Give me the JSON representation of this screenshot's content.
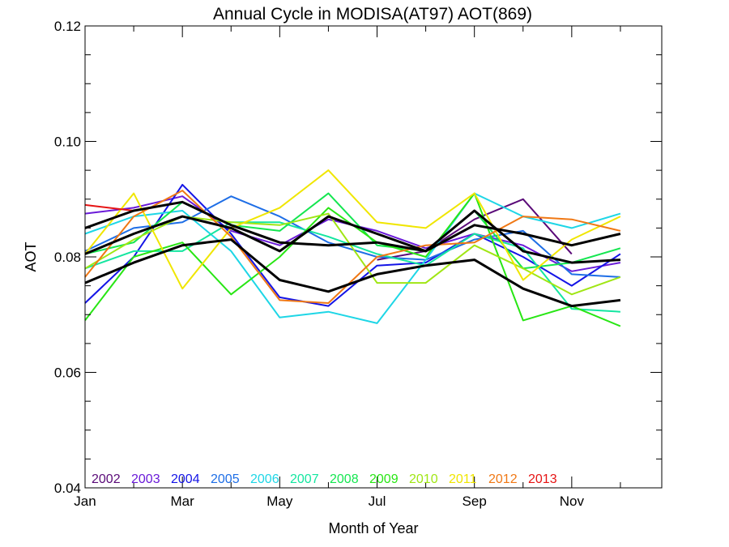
{
  "chart_data": {
    "type": "line",
    "title": "Annual Cycle in MODISA(AT97) AOT(869)",
    "xlabel": "Month of Year",
    "ylabel": "AOT",
    "xlim": [
      1,
      12.85
    ],
    "ylim": [
      0.04,
      0.12
    ],
    "x_ticks": [
      {
        "value": 1,
        "label": "Jan"
      },
      {
        "value": 3,
        "label": "Mar"
      },
      {
        "value": 5,
        "label": "May"
      },
      {
        "value": 7,
        "label": "Jul"
      },
      {
        "value": 9,
        "label": "Sep"
      },
      {
        "value": 11,
        "label": "Nov"
      }
    ],
    "y_ticks": [
      {
        "value": 0.04,
        "label": "0.04"
      },
      {
        "value": 0.06,
        "label": "0.06"
      },
      {
        "value": 0.08,
        "label": "0.08"
      },
      {
        "value": 0.1,
        "label": "0.10"
      },
      {
        "value": 0.12,
        "label": "0.12"
      }
    ],
    "grid": false,
    "legend_position": "bottom-left",
    "x": [
      1,
      2,
      3,
      4,
      5,
      6,
      7,
      8,
      9,
      10,
      11,
      12
    ],
    "series": [
      {
        "name": "2002",
        "color": "#5a0a78",
        "values": [
          null,
          null,
          null,
          null,
          null,
          null,
          0.0795,
          0.081,
          0.0865,
          0.09,
          0.0805,
          null
        ]
      },
      {
        "name": "2003",
        "color": "#6a1ad8",
        "values": [
          0.0875,
          0.0885,
          0.0905,
          0.0845,
          0.082,
          0.0865,
          0.0845,
          0.0815,
          0.084,
          0.082,
          0.0775,
          0.079
        ]
      },
      {
        "name": "2004",
        "color": "#1414e6",
        "values": [
          0.072,
          0.08,
          0.0925,
          0.084,
          0.073,
          0.0715,
          0.0785,
          0.079,
          0.084,
          0.08,
          0.075,
          0.0805
        ]
      },
      {
        "name": "2005",
        "color": "#1e6ee6",
        "values": [
          0.081,
          0.085,
          0.086,
          0.0905,
          0.087,
          0.0825,
          0.08,
          0.0795,
          0.083,
          0.0845,
          0.077,
          0.0765
        ]
      },
      {
        "name": "2006",
        "color": "#1ed6e6",
        "values": [
          0.084,
          0.087,
          0.088,
          0.081,
          0.0695,
          0.0705,
          0.0685,
          0.0795,
          0.091,
          0.087,
          0.085,
          0.0875
        ]
      },
      {
        "name": "2007",
        "color": "#14e6a0",
        "values": [
          0.078,
          0.081,
          0.081,
          0.086,
          0.086,
          0.0835,
          0.0805,
          0.0785,
          0.084,
          0.0815,
          0.071,
          0.0705
        ]
      },
      {
        "name": "2008",
        "color": "#14e650",
        "values": [
          0.0805,
          0.0825,
          0.0895,
          0.0855,
          0.0845,
          0.091,
          0.082,
          0.081,
          0.088,
          0.078,
          0.079,
          0.0815
        ]
      },
      {
        "name": "2009",
        "color": "#28e614",
        "values": [
          0.069,
          0.08,
          0.0825,
          0.0735,
          0.08,
          0.0885,
          0.0825,
          0.08,
          0.091,
          0.069,
          0.0715,
          0.068
        ]
      },
      {
        "name": "2010",
        "color": "#a0e614",
        "values": [
          0.078,
          0.083,
          0.087,
          0.086,
          0.0855,
          0.0875,
          0.0755,
          0.0755,
          0.082,
          0.078,
          0.0735,
          0.0765
        ]
      },
      {
        "name": "2011",
        "color": "#f0e600",
        "values": [
          0.0805,
          0.091,
          0.0745,
          0.085,
          0.0885,
          0.095,
          0.086,
          0.085,
          0.091,
          0.076,
          0.083,
          0.087
        ]
      },
      {
        "name": "2012",
        "color": "#f07814",
        "values": [
          0.0765,
          0.087,
          0.0915,
          0.0835,
          0.0725,
          0.072,
          0.08,
          0.082,
          0.0825,
          0.087,
          0.0865,
          0.0845
        ]
      },
      {
        "name": "2013",
        "color": "#e61414",
        "values": [
          0.089,
          0.088,
          null,
          null,
          null,
          null,
          null,
          null,
          null,
          null,
          null,
          null
        ]
      },
      {
        "color": "#000000",
        "values": [
          0.085,
          0.088,
          0.0895,
          0.0855,
          0.0825,
          0.082,
          0.0825,
          0.081,
          0.0855,
          0.084,
          0.082,
          0.084
        ]
      },
      {
        "color": "#000000",
        "values": [
          0.0805,
          0.084,
          0.087,
          0.085,
          0.081,
          0.087,
          0.084,
          0.081,
          0.088,
          0.081,
          0.079,
          0.0795
        ]
      },
      {
        "color": "#000000",
        "values": [
          0.0755,
          0.079,
          0.082,
          0.083,
          0.076,
          0.074,
          0.077,
          0.0785,
          0.0795,
          0.0745,
          0.0715,
          0.0725
        ]
      }
    ]
  }
}
